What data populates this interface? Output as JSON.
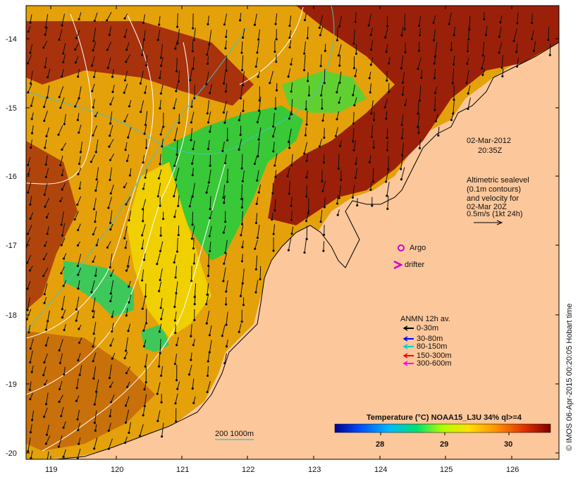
{
  "map": {
    "date_line1": "02-Mar-2012",
    "date_line2": "20:35Z",
    "sealevel_note": {
      "lines": [
        "Altimetric sealevel",
        "(0.1m contours)",
        "and velocity for",
        "02-Mar 20Z",
        "0.5m/s (1kt 24h)"
      ]
    },
    "argo_label": "Argo",
    "drifter_label": "drifter",
    "anmn_legend": {
      "title": "ANMN 12h av.",
      "items": [
        {
          "label": "0-30m",
          "color": "#000000"
        },
        {
          "label": "30-80m",
          "color": "#0000ff"
        },
        {
          "label": "80-150m",
          "color": "#00cccc"
        },
        {
          "label": "150-300m",
          "color": "#ff0000"
        },
        {
          "label": "300-600m",
          "color": "#ff00ff"
        }
      ]
    },
    "isobath_label": "200  1000m",
    "colorbar": {
      "title": "Temperature (°C) NOAA15_L3U 34% ql>=4",
      "ticks": [
        "28",
        "29",
        "30"
      ]
    },
    "credit": "© IMOS 06-Apr-2015 00:20:05 Hobart time",
    "x_ticks": [
      "119",
      "120",
      "121",
      "122",
      "123",
      "124",
      "125",
      "126"
    ],
    "y_ticks": [
      "-14",
      "-15",
      "-16",
      "-17",
      "-18",
      "-19",
      "-20"
    ],
    "colors": {
      "land": "#fcc79a",
      "warm": "#a5240a",
      "mid": "#e8a000",
      "cool": "#2ec84a",
      "argo": "#d000d0",
      "isobath": "#44c4c4"
    }
  }
}
